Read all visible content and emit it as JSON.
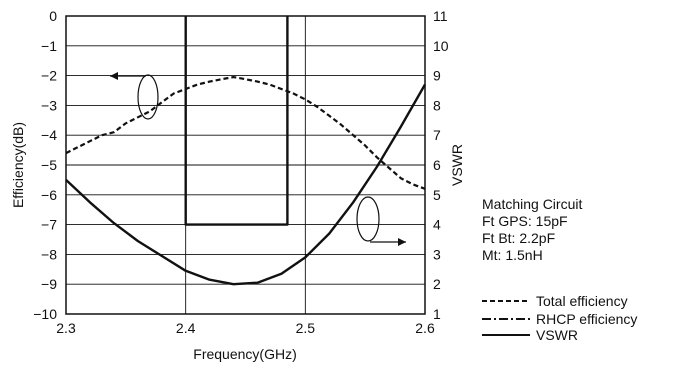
{
  "chart_data": {
    "type": "line",
    "xlabel": "Frequency(GHz)",
    "ylabel_left": "Efficiency(dB)",
    "ylabel_right": "VSWR",
    "xlim": [
      2.3,
      2.6
    ],
    "ylim_left": [
      -10,
      0
    ],
    "ylim_right": [
      1,
      11
    ],
    "x_ticks": [
      "2.3",
      "2.4",
      "2.5",
      "2.6"
    ],
    "y_left_ticks": [
      "0",
      "−1",
      "−2",
      "−3",
      "−4",
      "−5",
      "−6",
      "−7",
      "−8",
      "−9",
      "−10"
    ],
    "y_right_ticks": [
      "11",
      "10",
      "9",
      "8",
      "7",
      "6",
      "5",
      "4",
      "3",
      "2",
      "1"
    ],
    "grid": true,
    "series": [
      {
        "name": "Total efficiency",
        "axis": "left",
        "style": "dashed",
        "x": [
          2.3,
          2.31,
          2.32,
          2.33,
          2.34,
          2.35,
          2.36,
          2.37,
          2.38,
          2.39,
          2.4,
          2.41,
          2.42,
          2.43,
          2.44,
          2.45,
          2.46,
          2.47,
          2.48,
          2.49,
          2.5,
          2.51,
          2.52,
          2.53,
          2.54,
          2.55,
          2.56,
          2.57,
          2.58,
          2.59,
          2.6
        ],
        "y": [
          -4.6,
          -4.4,
          -4.2,
          -4.0,
          -3.9,
          -3.6,
          -3.4,
          -3.2,
          -2.9,
          -2.6,
          -2.45,
          -2.3,
          -2.2,
          -2.12,
          -2.05,
          -2.12,
          -2.2,
          -2.3,
          -2.45,
          -2.6,
          -2.8,
          -3.05,
          -3.35,
          -3.65,
          -4.0,
          -4.35,
          -4.75,
          -5.1,
          -5.45,
          -5.65,
          -5.8
        ]
      },
      {
        "name": "RHCP efficiency",
        "axis": "left",
        "style": "dashdot",
        "x": [
          2.4,
          2.4,
          2.485,
          2.485
        ],
        "y": [
          0,
          -7,
          -7,
          0
        ]
      },
      {
        "name": "VSWR",
        "axis": "right",
        "style": "solid",
        "x": [
          2.3,
          2.32,
          2.34,
          2.36,
          2.38,
          2.4,
          2.42,
          2.44,
          2.46,
          2.48,
          2.5,
          2.52,
          2.54,
          2.56,
          2.58,
          2.6
        ],
        "y": [
          5.5,
          4.75,
          4.05,
          3.45,
          2.95,
          2.45,
          2.15,
          2.0,
          2.05,
          2.35,
          2.9,
          3.7,
          4.75,
          5.95,
          7.3,
          8.7
        ]
      }
    ],
    "annotations": {
      "left_arrow_target": "Efficiency(dB)",
      "right_arrow_target": "VSWR"
    }
  },
  "side_text": {
    "title": "Matching Circuit",
    "lines": [
      "Ft GPS: 15pF",
      "Ft Bt: 2.2pF",
      "Mt: 1.5nH"
    ]
  },
  "legend": [
    "Total efficiency",
    "RHCP efficiency",
    "VSWR"
  ]
}
